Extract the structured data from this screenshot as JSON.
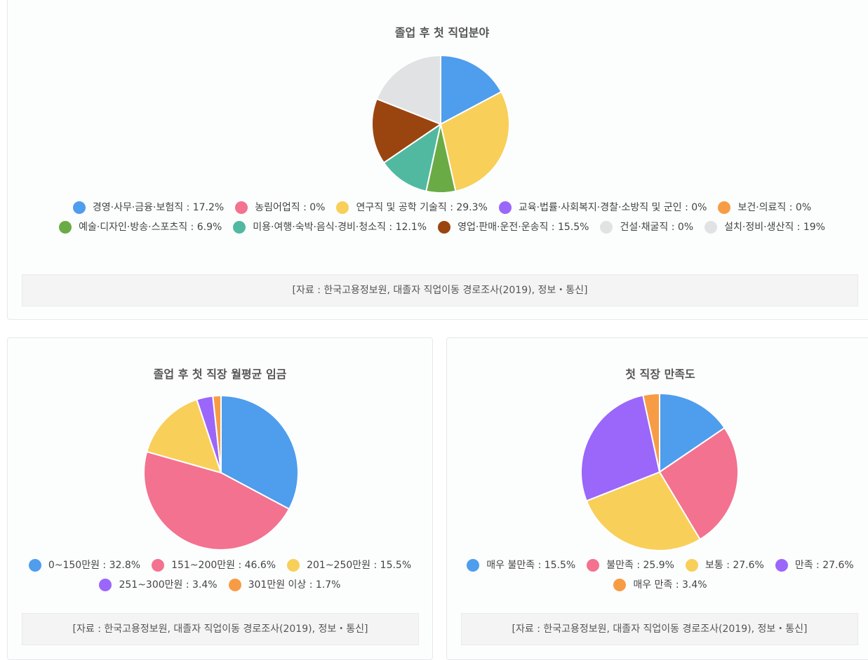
{
  "chart_data": [
    {
      "type": "pie",
      "title": "졸업 후 첫 직업분야",
      "series": [
        {
          "label": "경영·사무·금융·보험직 : 17.2%",
          "value": 17.2,
          "color": "#4f9ded"
        },
        {
          "label": "농림어업직 : 0%",
          "value": 0,
          "color": "#f3728f"
        },
        {
          "label": "연구직 및 공학 기술직 : 29.3%",
          "value": 29.3,
          "color": "#f8cf59"
        },
        {
          "label": "교육·법률·사회복지·경찰·소방직 및 군인 : 0%",
          "value": 0,
          "color": "#9b66fa"
        },
        {
          "label": "보건·의료직 : 0%",
          "value": 0,
          "color": "#f79c45"
        },
        {
          "label": "예술·디자인·방송·스포츠직 : 6.9%",
          "value": 6.9,
          "color": "#6bab46"
        },
        {
          "label": "미용·여행·숙박·음식·경비·청소직 : 12.1%",
          "value": 12.1,
          "color": "#52b9a1"
        },
        {
          "label": "영업·판매·운전·운송직 : 15.5%",
          "value": 15.5,
          "color": "#9a4510"
        },
        {
          "label": "건설·채굴직 : 0%",
          "value": 0,
          "color": "#e1e2e3"
        },
        {
          "label": "설치·정비·생산직 : 19%",
          "value": 19,
          "color": "#e1e2e3"
        }
      ],
      "source": "[자료 : 한국고용정보원, 대졸자 직업이동 경로조사(2019), 정보・통신]"
    },
    {
      "type": "pie",
      "title": "졸업 후 첫 직장 월평균 임금",
      "series": [
        {
          "label": "0~150만원 : 32.8%",
          "value": 32.8,
          "color": "#4f9ded"
        },
        {
          "label": "151~200만원 : 46.6%",
          "value": 46.6,
          "color": "#f3728f"
        },
        {
          "label": "201~250만원 : 15.5%",
          "value": 15.5,
          "color": "#f8cf59"
        },
        {
          "label": "251~300만원 : 3.4%",
          "value": 3.4,
          "color": "#9b66fa"
        },
        {
          "label": "301만원 이상 : 1.7%",
          "value": 1.7,
          "color": "#f79c45"
        }
      ],
      "source": "[자료 : 한국고용정보원, 대졸자 직업이동 경로조사(2019), 정보・통신]"
    },
    {
      "type": "pie",
      "title": "첫 직장 만족도",
      "series": [
        {
          "label": "매우 불만족 : 15.5%",
          "value": 15.5,
          "color": "#4f9ded"
        },
        {
          "label": "불만족 : 25.9%",
          "value": 25.9,
          "color": "#f3728f"
        },
        {
          "label": "보통 : 27.6%",
          "value": 27.6,
          "color": "#f8cf59"
        },
        {
          "label": "만족 : 27.6%",
          "value": 27.6,
          "color": "#9b66fa"
        },
        {
          "label": "매우 만족 : 3.4%",
          "value": 3.4,
          "color": "#f79c45"
        }
      ],
      "source": "[자료 : 한국고용정보원, 대졸자 직업이동 경로조사(2019), 정보・통신]"
    }
  ]
}
